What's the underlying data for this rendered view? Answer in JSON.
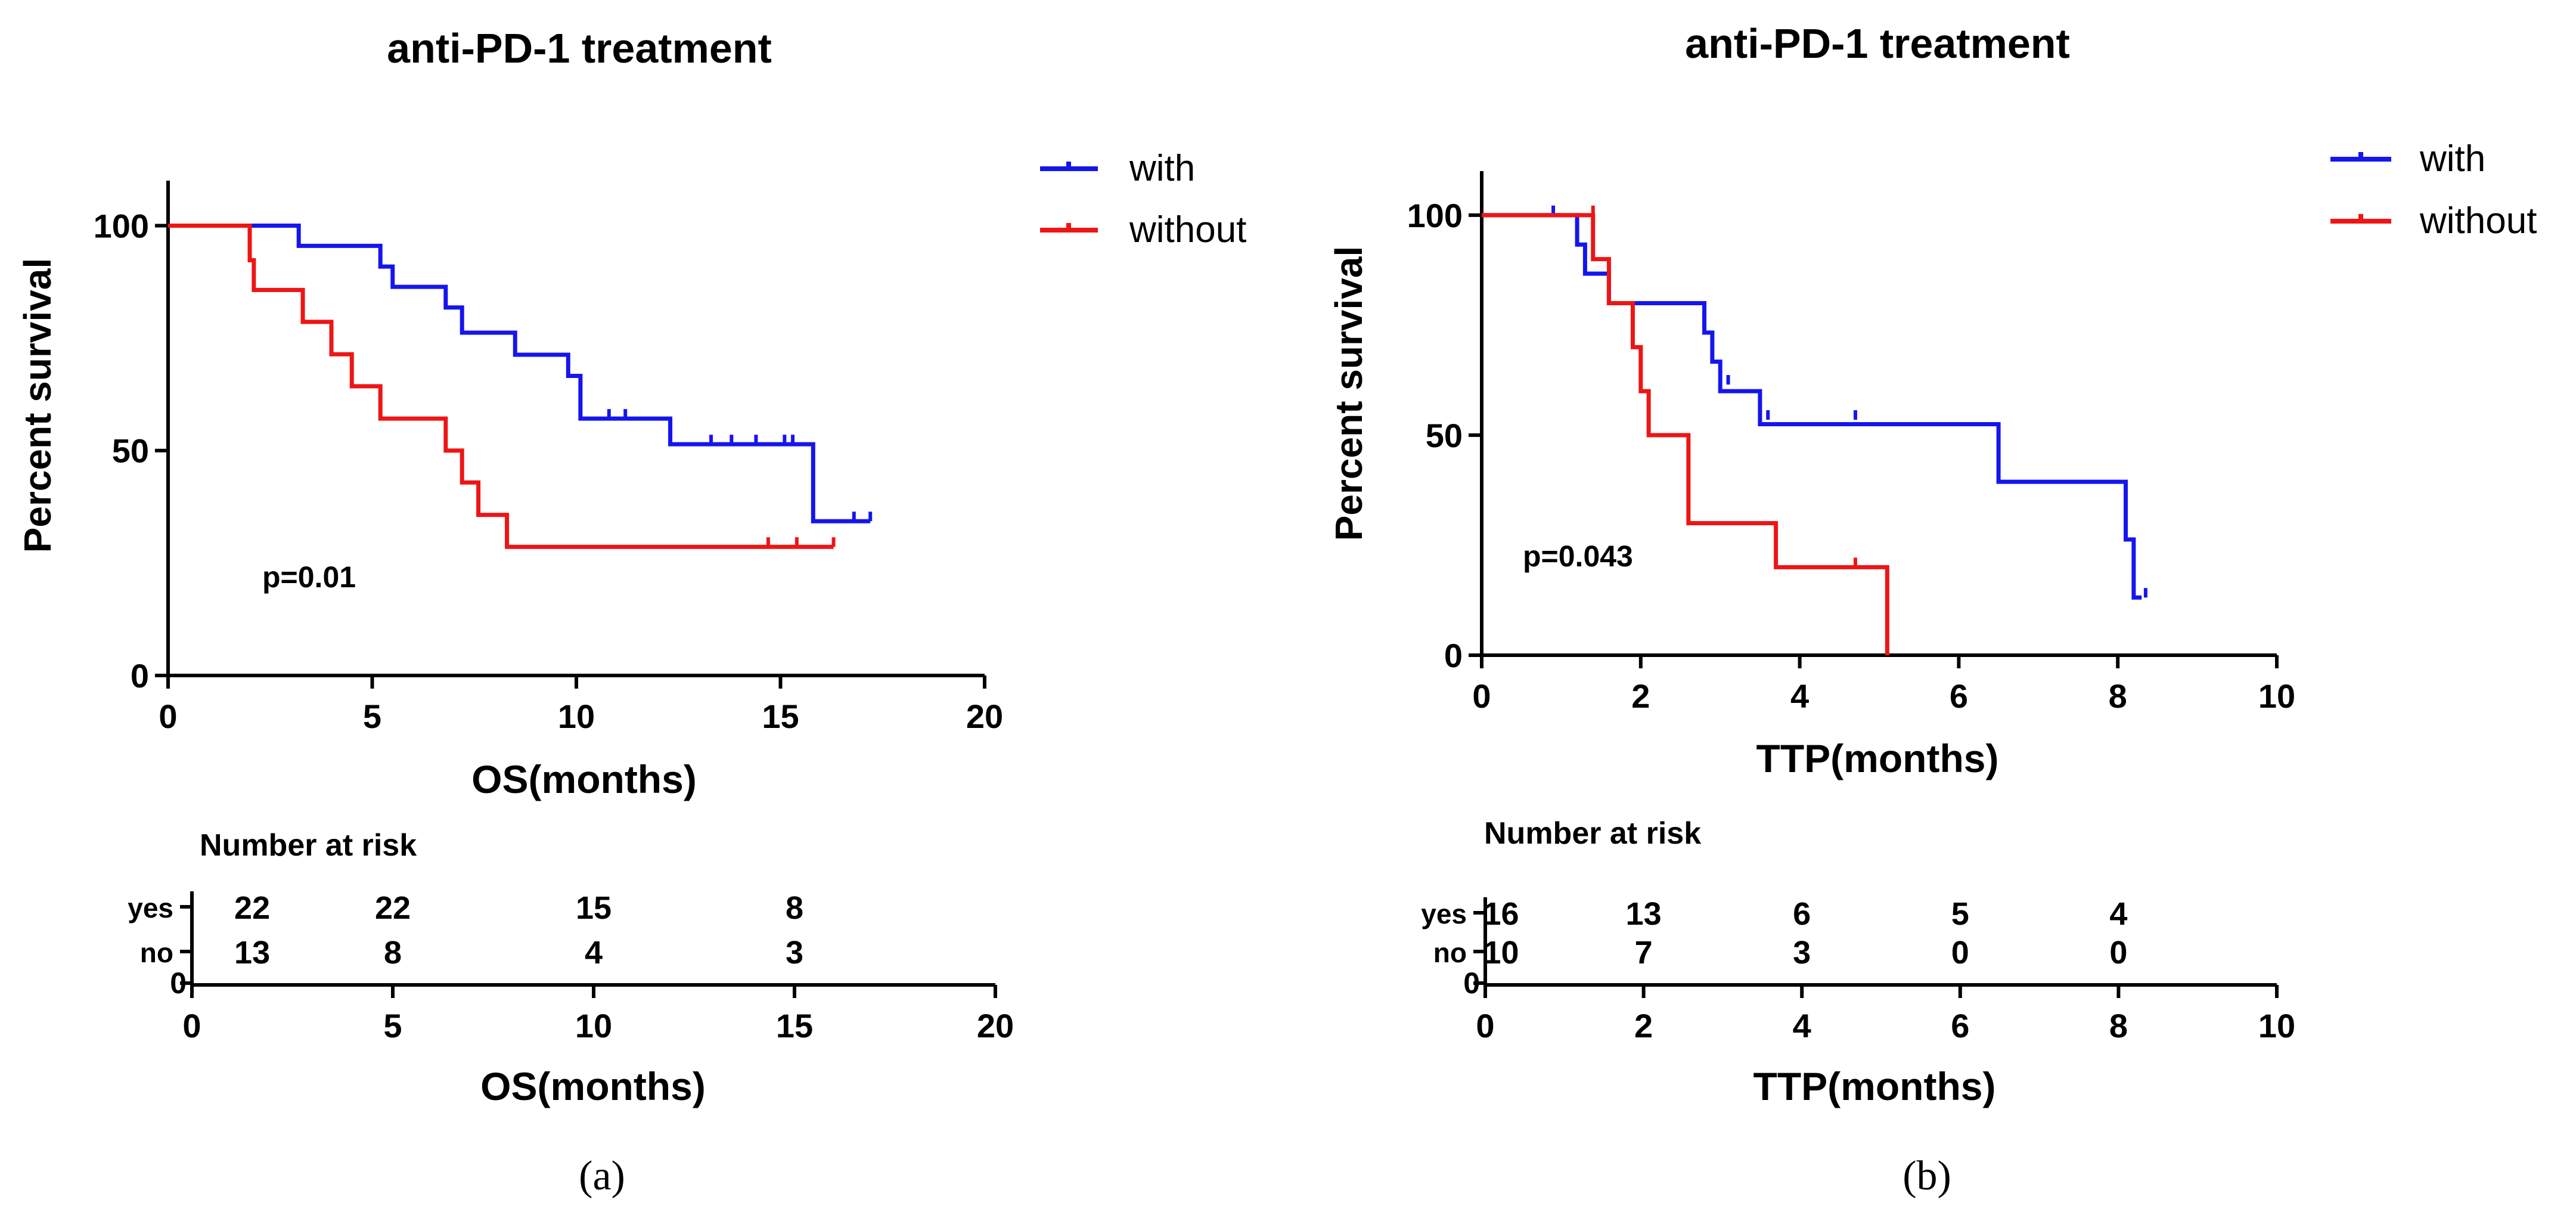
{
  "figure_labels": [
    "(a)",
    "(b)"
  ],
  "chart_data": [
    {
      "type": "line",
      "subtype": "kaplan-meier",
      "title": "anti-PD-1 treatment",
      "xlabel": "OS(months)",
      "ylabel": "Percent survival",
      "xlim": [
        0,
        20
      ],
      "ylim": [
        0,
        110
      ],
      "xticks": [
        0,
        5,
        10,
        15,
        20
      ],
      "yticks": [
        0,
        50,
        100
      ],
      "legend_position": "top-right",
      "annotation": "p=0.01",
      "colors": {
        "with": "#1515ee",
        "without": "#ee1515"
      },
      "series": [
        {
          "name": "with",
          "x": [
            0,
            3.2,
            5.2,
            5.5,
            6.8,
            7.2,
            8.5,
            9.8,
            10.1,
            12.3,
            15.8,
            17.2
          ],
          "y": [
            100,
            95.5,
            90.9,
            86.4,
            81.8,
            76.2,
            71.3,
            66.6,
            57.1,
            51.4,
            34.3,
            34.3
          ],
          "censored": [
            [
              10.8,
              57.1
            ],
            [
              11.2,
              57.1
            ],
            [
              13.3,
              51.4
            ],
            [
              13.8,
              51.4
            ],
            [
              14.4,
              51.4
            ],
            [
              15.1,
              51.4
            ],
            [
              15.3,
              51.4
            ],
            [
              16.8,
              34.3
            ],
            [
              17.2,
              34.3
            ]
          ]
        },
        {
          "name": "without",
          "x": [
            0,
            2.0,
            2.1,
            3.3,
            4.0,
            4.5,
            5.2,
            6.8,
            7.2,
            7.6,
            8.3,
            16.3
          ],
          "y": [
            100,
            92.3,
            85.7,
            78.6,
            71.4,
            64.3,
            57.1,
            50.0,
            42.9,
            35.7,
            28.6,
            28.6
          ],
          "censored": [
            [
              14.7,
              28.6
            ],
            [
              15.4,
              28.6
            ],
            [
              16.3,
              28.6
            ]
          ]
        }
      ],
      "risk_table": {
        "title": "Number at risk",
        "xlabel": "OS(months)",
        "xlim": [
          0,
          20
        ],
        "xticks": [
          0,
          5,
          10,
          15,
          20
        ],
        "ytick": 0,
        "groups": [
          {
            "label": "yes",
            "times": [
              1.5,
              5,
              10,
              15
            ],
            "counts": [
              "22",
              "22",
              "15",
              "8"
            ]
          },
          {
            "label": "no",
            "times": [
              1.5,
              5,
              10,
              15
            ],
            "counts": [
              "13",
              "8",
              "4",
              "3"
            ]
          }
        ]
      }
    },
    {
      "type": "line",
      "subtype": "kaplan-meier",
      "title": "anti-PD-1 treatment",
      "xlabel": "TTP(months)",
      "ylabel": "Percent survival",
      "xlim": [
        0,
        10
      ],
      "ylim": [
        0,
        110
      ],
      "xticks": [
        0,
        2,
        4,
        6,
        8,
        10
      ],
      "yticks": [
        0,
        50,
        100
      ],
      "legend_position": "top-right",
      "annotation": "p=0.043",
      "colors": {
        "with": "#1515ee",
        "without": "#ee1515"
      },
      "series": [
        {
          "name": "with",
          "x": [
            0,
            1.2,
            1.3,
            1.6,
            2.8,
            2.9,
            3.0,
            3.2,
            3.5,
            6.5,
            8.1,
            8.2,
            8.3
          ],
          "y": [
            100,
            93.3,
            86.7,
            80.0,
            73.3,
            66.7,
            60.0,
            60.0,
            52.5,
            39.4,
            26.3,
            13.1,
            13.1
          ],
          "censored": [
            [
              0.9,
              100
            ],
            [
              3.1,
              61.5
            ],
            [
              3.6,
              53.5
            ],
            [
              4.7,
              53.5
            ],
            [
              8.35,
              13.1
            ]
          ]
        },
        {
          "name": "without",
          "x": [
            0,
            1.4,
            1.6,
            1.9,
            2.0,
            2.1,
            2.6,
            3.7,
            5.1
          ],
          "y": [
            100,
            90,
            80,
            70,
            60,
            50,
            30,
            20,
            0
          ],
          "censored": [
            [
              1.4,
              100
            ],
            [
              4.7,
              20
            ]
          ]
        }
      ],
      "risk_table": {
        "title": "Number at risk",
        "xlabel": "TTP(months)",
        "xlim": [
          0,
          10
        ],
        "xticks": [
          0,
          2,
          4,
          6,
          8,
          10
        ],
        "ytick": 0,
        "groups": [
          {
            "label": "yes",
            "times": [
              0.2,
              2,
              4,
              6,
              8
            ],
            "counts": [
              "16",
              "13",
              "6",
              "5",
              "4"
            ]
          },
          {
            "label": "no",
            "times": [
              0.2,
              2,
              4,
              6,
              8
            ],
            "counts": [
              "10",
              "7",
              "3",
              "0",
              "0"
            ]
          }
        ]
      }
    }
  ]
}
